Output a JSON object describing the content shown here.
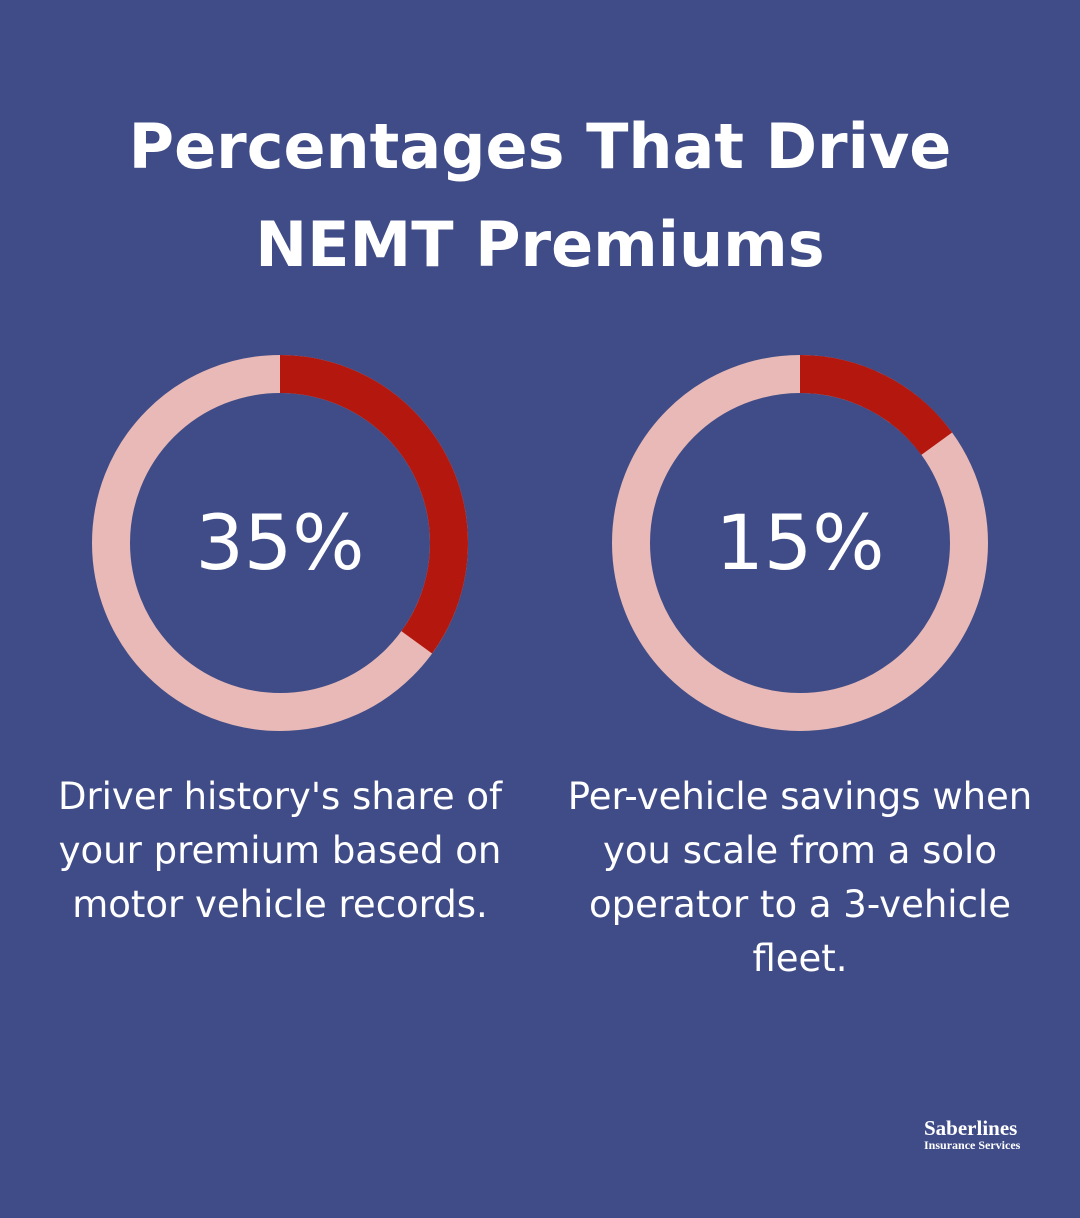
{
  "title": "Percentages That Drive NEMT Premiums",
  "chart_data": [
    {
      "type": "donut",
      "values": [
        35
      ],
      "value_labels": [
        "35%"
      ],
      "scale": [
        0,
        100
      ],
      "color": "#b3170d",
      "track_color": "#e8b9b6",
      "caption": "Driver history's share of your premium based on motor vehicle records."
    },
    {
      "type": "donut",
      "values": [
        15
      ],
      "value_labels": [
        "15%"
      ],
      "scale": [
        0,
        100
      ],
      "color": "#b3170d",
      "track_color": "#e8b9b6",
      "caption": "Per-vehicle savings when you scale from a solo operator to a 3-vehicle fleet."
    }
  ],
  "brand": {
    "name": "Saberlines",
    "tagline": "Insurance Services"
  }
}
